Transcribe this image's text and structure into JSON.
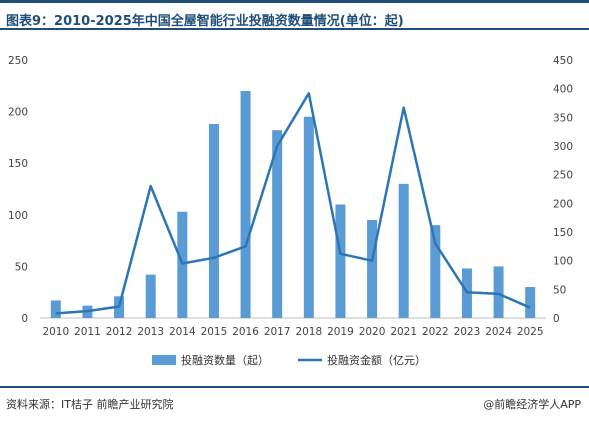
{
  "title": "图表9：2010-2025年中国全屋智能行业投融资数量情况(单位：起)",
  "footer": {
    "source": "资料来源：IT桔子 前瞻产业研究院",
    "brand": "@前瞻经济学人APP"
  },
  "colors": {
    "bar": "#5b9bd5",
    "line": "#2e75b6",
    "title": "#1f4e79"
  },
  "chart_data": {
    "type": "bar+line",
    "categories": [
      "2010",
      "2011",
      "2012",
      "2013",
      "2014",
      "2015",
      "2016",
      "2017",
      "2018",
      "2019",
      "2020",
      "2021",
      "2022",
      "2023",
      "2024",
      "2025"
    ],
    "series": [
      {
        "name": "投融资数量（起）",
        "type": "bar",
        "axis": "left",
        "values": [
          17,
          12,
          21,
          42,
          103,
          188,
          220,
          182,
          195,
          110,
          95,
          130,
          90,
          48,
          50,
          30
        ]
      },
      {
        "name": "投融资金额（亿元）",
        "type": "line",
        "axis": "right",
        "values": [
          8,
          12,
          20,
          230,
          95,
          105,
          125,
          300,
          392,
          112,
          100,
          367,
          130,
          45,
          42,
          18
        ]
      }
    ],
    "y_left": {
      "min": 0,
      "max": 250,
      "ticks": [
        0,
        50,
        100,
        150,
        200,
        250
      ]
    },
    "y_right": {
      "min": 0,
      "max": 450,
      "ticks": [
        0,
        50,
        100,
        150,
        200,
        250,
        300,
        350,
        400,
        450
      ]
    },
    "legend_position": "bottom",
    "grid": false
  }
}
